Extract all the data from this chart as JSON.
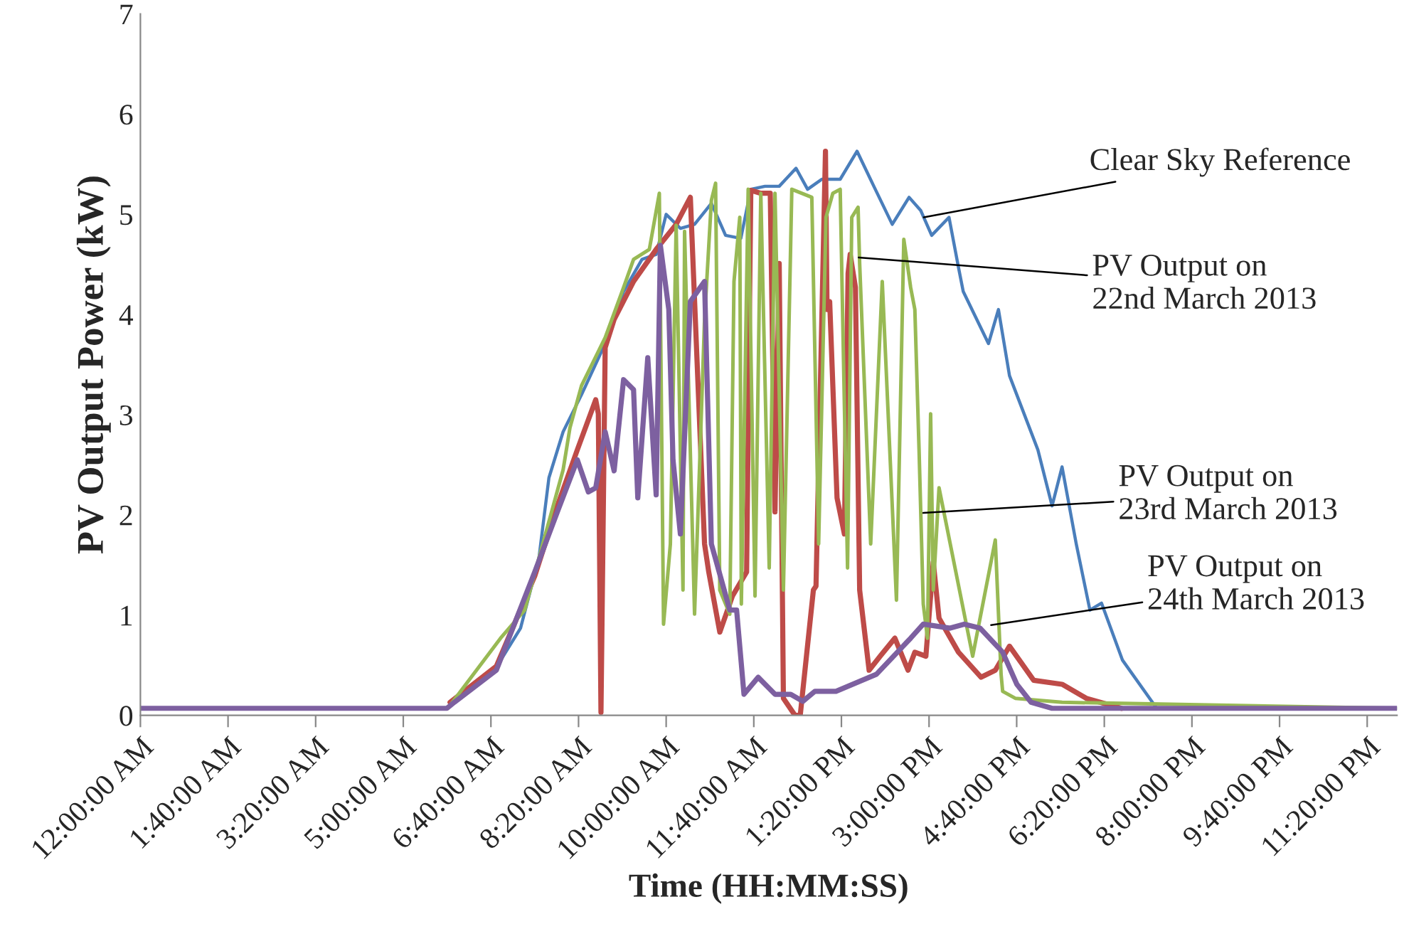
{
  "chart_data": {
    "type": "line",
    "xlabel": "Time (HH:MM:SS)",
    "ylabel": "PV Output Power (kW)",
    "xlim": [
      0,
      23.9
    ],
    "ylim": [
      0,
      7
    ],
    "yticks": [
      0,
      1,
      2,
      3,
      4,
      5,
      6,
      7
    ],
    "xticks": [
      {
        "value": 0,
        "label": "12:00:00 AM"
      },
      {
        "value": 1.6667,
        "label": "1:40:00 AM"
      },
      {
        "value": 3.3333,
        "label": "3:20:00 AM"
      },
      {
        "value": 5,
        "label": "5:00:00 AM"
      },
      {
        "value": 6.6667,
        "label": "6:40:00 AM"
      },
      {
        "value": 8.3333,
        "label": "8:20:00 AM"
      },
      {
        "value": 10,
        "label": "10:00:00 AM"
      },
      {
        "value": 11.6667,
        "label": "11:40:00 AM"
      },
      {
        "value": 13.3333,
        "label": "1:20:00 PM"
      },
      {
        "value": 15,
        "label": "3:00:00 PM"
      },
      {
        "value": 16.6667,
        "label": "4:40:00 PM"
      },
      {
        "value": 18.3333,
        "label": "6:20:00 PM"
      },
      {
        "value": 20,
        "label": "8:00:00 PM"
      },
      {
        "value": 21.6667,
        "label": "9:40:00 PM"
      },
      {
        "value": 23.3333,
        "label": "11:20:00 PM"
      }
    ],
    "grid": false,
    "legend": false,
    "marker": "none",
    "line_style": "solid",
    "series": [
      {
        "color": "#4a7ebb",
        "x": [
          0,
          5.83,
          5.97,
          6.77,
          7.23,
          7.58,
          7.77,
          8.04,
          8.39,
          8.84,
          9.19,
          9.54,
          9.81,
          10.0,
          10.27,
          10.54,
          10.86,
          11.13,
          11.42,
          11.61,
          11.88,
          12.15,
          12.47,
          12.69,
          12.96,
          13.31,
          13.63,
          13.95,
          14.3,
          14.62,
          14.84,
          15.05,
          15.38,
          15.56,
          15.65,
          16.13,
          16.32,
          16.53,
          17.07,
          17.34,
          17.53,
          17.8,
          18.06,
          18.28,
          18.68,
          19.33,
          23.9
        ],
        "values": [
          0.07,
          0.07,
          0.13,
          0.48,
          0.87,
          1.57,
          2.37,
          2.83,
          3.2,
          3.71,
          4.23,
          4.55,
          4.6,
          5.0,
          4.86,
          4.9,
          5.11,
          4.79,
          4.76,
          5.25,
          5.28,
          5.28,
          5.46,
          5.25,
          5.35,
          5.35,
          5.63,
          5.28,
          4.9,
          5.17,
          5.04,
          4.79,
          4.97,
          4.47,
          4.23,
          3.71,
          4.05,
          3.39,
          2.65,
          2.09,
          2.48,
          1.71,
          1.05,
          1.12,
          0.55,
          0.07,
          0.07
        ]
      },
      {
        "color": "#be4b48",
        "x": [
          5.89,
          6.77,
          7.5,
          7.93,
          8.31,
          8.66,
          8.71,
          8.76,
          8.84,
          9.01,
          9.38,
          9.81,
          10.19,
          10.46,
          10.73,
          10.81,
          11.02,
          11.26,
          11.53,
          11.61,
          11.8,
          11.98,
          12.07,
          12.15,
          12.23,
          12.45,
          12.55,
          12.8,
          12.85,
          13.03,
          13.06,
          13.11,
          13.25,
          13.39,
          13.46,
          13.5,
          13.6,
          13.68,
          13.68,
          13.86,
          14.07,
          14.35,
          14.6,
          14.73,
          14.94,
          15.08,
          15.19,
          15.56,
          15.99,
          16.26,
          16.53,
          16.99,
          17.53,
          17.99,
          18.66
        ],
        "values": [
          0.13,
          0.49,
          1.39,
          2.09,
          2.65,
          3.15,
          3.01,
          0.03,
          3.67,
          3.95,
          4.33,
          4.65,
          4.9,
          5.17,
          1.71,
          1.43,
          0.83,
          1.19,
          1.43,
          5.24,
          5.21,
          5.21,
          2.03,
          4.51,
          0.17,
          0.0,
          0.0,
          1.25,
          1.29,
          5.63,
          4.05,
          4.13,
          2.17,
          1.81,
          4.41,
          4.6,
          4.27,
          1.25,
          1.25,
          0.45,
          0.59,
          0.77,
          0.45,
          0.63,
          0.59,
          1.53,
          0.97,
          0.63,
          0.38,
          0.45,
          0.69,
          0.35,
          0.31,
          0.17,
          0.07
        ]
      },
      {
        "color": "#98b954",
        "x": [
          5.89,
          6.85,
          7.31,
          7.58,
          8.04,
          8.17,
          8.39,
          8.84,
          9.19,
          9.38,
          9.68,
          9.87,
          9.95,
          10.08,
          10.19,
          10.32,
          10.35,
          10.54,
          10.73,
          10.86,
          10.94,
          11.02,
          11.21,
          11.29,
          11.4,
          11.43,
          11.56,
          11.69,
          11.8,
          11.96,
          12.07,
          12.07,
          12.23,
          12.39,
          12.77,
          12.9,
          13.04,
          13.17,
          13.31,
          13.45,
          13.53,
          13.65,
          13.68,
          13.89,
          14.11,
          14.38,
          14.52,
          14.65,
          14.73,
          14.81,
          14.89,
          14.97,
          15.03,
          15.08,
          15.19,
          15.83,
          16.26,
          16.37,
          16.4,
          16.64,
          17.53,
          23.9
        ],
        "values": [
          0.1,
          0.77,
          1.05,
          1.57,
          2.45,
          2.87,
          3.29,
          3.77,
          4.27,
          4.55,
          4.65,
          5.21,
          0.91,
          1.71,
          4.89,
          1.25,
          4.83,
          1.01,
          3.95,
          5.14,
          5.31,
          1.25,
          1.01,
          4.33,
          4.97,
          1.11,
          5.25,
          1.19,
          5.21,
          1.47,
          5.21,
          5.21,
          1.25,
          5.25,
          5.17,
          1.71,
          4.97,
          5.21,
          5.25,
          1.47,
          4.97,
          5.07,
          4.51,
          1.71,
          4.33,
          1.15,
          4.75,
          4.27,
          4.05,
          2.65,
          1.11,
          0.77,
          3.01,
          1.25,
          2.27,
          0.59,
          1.75,
          0.41,
          0.24,
          0.17,
          0.13,
          0.07
        ]
      },
      {
        "color": "#7d60a0",
        "x": [
          0,
          5.83,
          5.97,
          6.77,
          7.5,
          7.93,
          8.31,
          8.52,
          8.66,
          8.84,
          9.01,
          9.19,
          9.38,
          9.46,
          9.65,
          9.81,
          9.89,
          10.05,
          10.13,
          10.27,
          10.46,
          10.73,
          10.86,
          11.21,
          11.34,
          11.48,
          11.75,
          12.07,
          12.37,
          12.6,
          12.83,
          13.23,
          14.0,
          14.65,
          14.89,
          15.4,
          15.67,
          15.97,
          16.4,
          16.67,
          16.94,
          17.34,
          17.88,
          18.34,
          18.61,
          23.9
        ],
        "values": [
          0.07,
          0.07,
          0.13,
          0.45,
          1.43,
          2.03,
          2.55,
          2.23,
          2.27,
          2.83,
          2.44,
          3.35,
          3.25,
          2.17,
          3.57,
          2.2,
          4.69,
          4.05,
          2.55,
          1.81,
          4.13,
          4.33,
          1.71,
          1.05,
          1.05,
          0.21,
          0.38,
          0.21,
          0.21,
          0.14,
          0.24,
          0.24,
          0.41,
          0.77,
          0.91,
          0.87,
          0.91,
          0.87,
          0.63,
          0.31,
          0.13,
          0.07,
          0.07,
          0.07,
          0.07,
          0.07
        ]
      }
    ],
    "annotations": [
      {
        "text": "Clear Sky Reference",
        "x": 14.9,
        "y": 4.97
      },
      {
        "text": "PV Output on\n22nd March 2013",
        "x": 13.66,
        "y": 4.57
      },
      {
        "text": "PV Output on\n23rd March 2013",
        "x": 14.89,
        "y": 2.02
      },
      {
        "text": "PV Output on\n24th March 2013",
        "x": 16.18,
        "y": 0.9
      }
    ]
  }
}
